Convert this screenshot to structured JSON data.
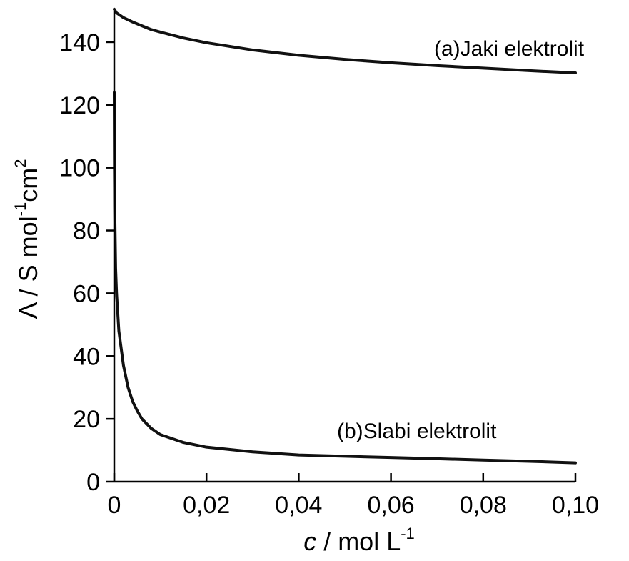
{
  "chart_data": {
    "type": "line",
    "xlabel": {
      "italic": "c",
      "text": " / mol L",
      "sup": "-1"
    },
    "ylabel": {
      "text": "Λ / S mol",
      "sup1": "-1",
      "mid": "cm",
      "sup2": "2"
    },
    "xlim": [
      0,
      0.1
    ],
    "ylim": [
      0,
      150
    ],
    "x_ticks": [
      0,
      0.02,
      0.04,
      0.06,
      0.08,
      0.1
    ],
    "x_tick_labels": [
      "0",
      "0,02",
      "0,04",
      "0,06",
      "0,08",
      "0,10"
    ],
    "y_ticks": [
      0,
      20,
      40,
      60,
      80,
      100,
      120,
      140
    ],
    "y_tick_labels": [
      "0",
      "20",
      "40",
      "60",
      "80",
      "100",
      "120",
      "140"
    ],
    "grid": false,
    "series": [
      {
        "name": "(a)Jaki elektrolit",
        "points": [
          [
            0,
            150.5
          ],
          [
            0.0005,
            149.3
          ],
          [
            0.001,
            148.8
          ],
          [
            0.002,
            147.8
          ],
          [
            0.004,
            146.4
          ],
          [
            0.006,
            145.2
          ],
          [
            0.008,
            144.0
          ],
          [
            0.01,
            143.2
          ],
          [
            0.015,
            141.3
          ],
          [
            0.02,
            139.8
          ],
          [
            0.03,
            137.5
          ],
          [
            0.04,
            135.8
          ],
          [
            0.05,
            134.5
          ],
          [
            0.06,
            133.4
          ],
          [
            0.07,
            132.5
          ],
          [
            0.08,
            131.7
          ],
          [
            0.09,
            130.9
          ],
          [
            0.1,
            130.2
          ]
        ]
      },
      {
        "name": "(b)Slabi elektrolit",
        "points": [
          [
            0,
            124
          ],
          [
            5e-05,
            100
          ],
          [
            0.0001,
            88
          ],
          [
            0.0003,
            68
          ],
          [
            0.0005,
            60
          ],
          [
            0.001,
            48
          ],
          [
            0.002,
            37
          ],
          [
            0.003,
            30
          ],
          [
            0.004,
            25.5
          ],
          [
            0.005,
            22.5
          ],
          [
            0.006,
            20
          ],
          [
            0.008,
            17
          ],
          [
            0.01,
            15
          ],
          [
            0.015,
            12.5
          ],
          [
            0.02,
            11
          ],
          [
            0.03,
            9.5
          ],
          [
            0.04,
            8.5
          ],
          [
            0.05,
            8.1
          ],
          [
            0.06,
            7.7
          ],
          [
            0.07,
            7.3
          ],
          [
            0.08,
            6.9
          ],
          [
            0.09,
            6.5
          ],
          [
            0.1,
            6.0
          ]
        ]
      }
    ]
  }
}
